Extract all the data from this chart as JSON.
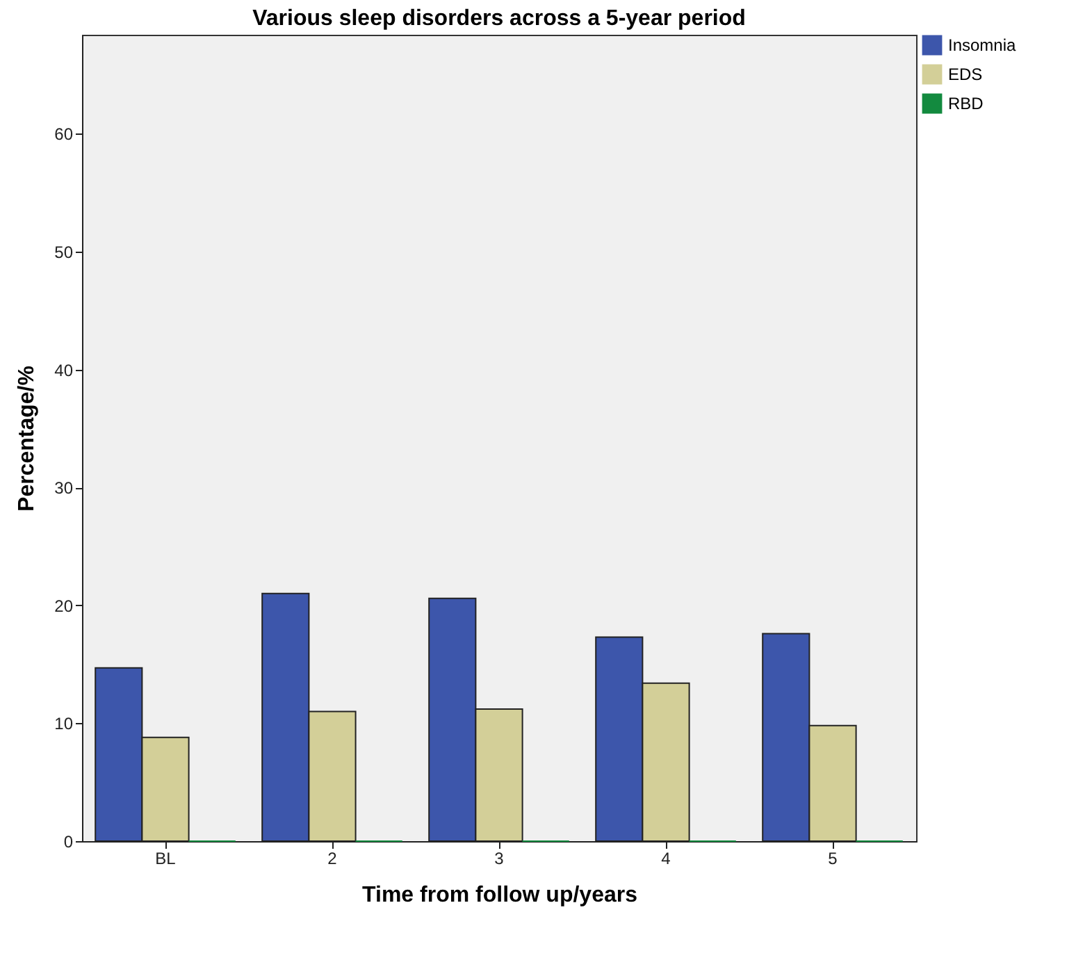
{
  "chart_data": {
    "type": "bar",
    "title": "Various sleep disorders across a 5-year period",
    "xlabel": "Time from follow up/years",
    "ylabel": "Percentage/%",
    "categories": [
      "BL",
      "2",
      "3",
      "4",
      "5"
    ],
    "series": [
      {
        "name": "Insomnia",
        "color": "#3d56ab",
        "values": [
          14.7,
          21.0,
          20.6,
          17.3,
          17.6
        ]
      },
      {
        "name": "EDS",
        "color": "#d3cf98",
        "values": [
          8.8,
          11.0,
          11.2,
          13.4,
          9.8
        ]
      },
      {
        "name": "RBD",
        "color": "#138a3f",
        "values": [
          0,
          0,
          0,
          0,
          0
        ]
      }
    ],
    "ylim": [
      0,
      68.4
    ],
    "yticks": [
      0,
      10,
      20,
      30,
      40,
      50,
      60
    ],
    "grid": false,
    "legend": "right"
  }
}
